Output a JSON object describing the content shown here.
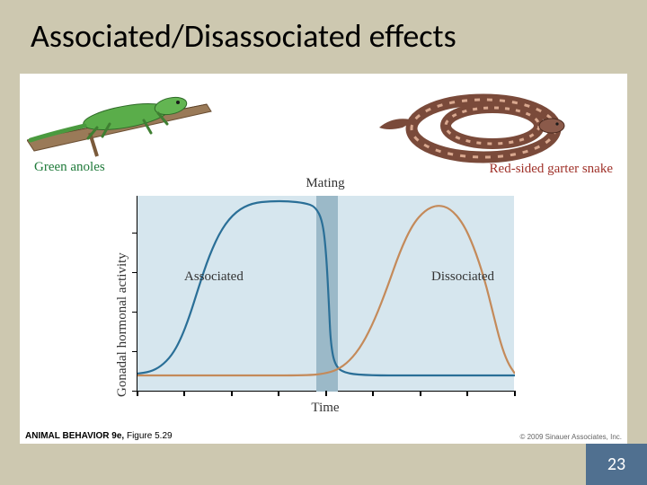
{
  "slide": {
    "title": "Associated/Disassociated effects",
    "page_number": "23",
    "background_color": "#cdc8b0",
    "badge_color": "#507090"
  },
  "species": {
    "left": {
      "label": "Green anoles",
      "label_color": "#1f7a3a",
      "body_color": "#4a9a3f",
      "branch_color": "#8a6b4a"
    },
    "right": {
      "label": "Red-sided garter snake",
      "label_color": "#a0322a",
      "body_color": "#8b5a4a",
      "stripe_color": "#d9a88f"
    }
  },
  "chart": {
    "type": "line",
    "mating_label": "Mating",
    "y_label": "Gonadal hormonal activity",
    "x_label": "Time",
    "curve_labels": {
      "associated": "Associated",
      "dissociated": "Dissociated"
    },
    "plot_bg": "#d6e6ee",
    "mating_band_color": "#9bb9c8",
    "mating_band_x": [
      199,
      223
    ],
    "font_family": "Georgia, serif",
    "label_fontsize": 15,
    "xlim": [
      0,
      420
    ],
    "ylim": [
      0,
      218
    ],
    "y_ticks": [
      0,
      43,
      87,
      131,
      175
    ],
    "x_ticks": [
      0,
      52,
      105,
      157,
      210,
      262,
      315,
      367,
      420
    ],
    "series": {
      "associated": {
        "color": "#2a6f97",
        "line_width": 2.2,
        "points": [
          [
            0,
            198
          ],
          [
            14,
            196
          ],
          [
            26,
            190
          ],
          [
            38,
            178
          ],
          [
            48,
            160
          ],
          [
            58,
            134
          ],
          [
            68,
            102
          ],
          [
            80,
            66
          ],
          [
            94,
            36
          ],
          [
            110,
            17
          ],
          [
            128,
            8
          ],
          [
            148,
            6
          ],
          [
            168,
            6
          ],
          [
            186,
            8
          ],
          [
            198,
            12
          ],
          [
            206,
            28
          ],
          [
            210,
            64
          ],
          [
            213,
            120
          ],
          [
            215,
            165
          ],
          [
            220,
            190
          ],
          [
            232,
            198
          ],
          [
            260,
            200
          ],
          [
            300,
            200
          ],
          [
            360,
            200
          ],
          [
            420,
            200
          ]
        ]
      },
      "dissociated": {
        "color": "#c48a5a",
        "line_width": 2.2,
        "points": [
          [
            0,
            200
          ],
          [
            120,
            200
          ],
          [
            190,
            200
          ],
          [
            208,
            198
          ],
          [
            222,
            194
          ],
          [
            236,
            184
          ],
          [
            250,
            166
          ],
          [
            264,
            138
          ],
          [
            278,
            102
          ],
          [
            292,
            62
          ],
          [
            306,
            32
          ],
          [
            320,
            16
          ],
          [
            334,
            10
          ],
          [
            348,
            14
          ],
          [
            362,
            30
          ],
          [
            374,
            56
          ],
          [
            386,
            92
          ],
          [
            396,
            132
          ],
          [
            404,
            164
          ],
          [
            412,
            186
          ],
          [
            420,
            198
          ]
        ]
      }
    }
  },
  "credits": {
    "source_bold": "ANIMAL BEHAVIOR 9e,",
    "source_rest": " Figure 5.29",
    "copyright": "© 2009 Sinauer Associates, Inc."
  }
}
